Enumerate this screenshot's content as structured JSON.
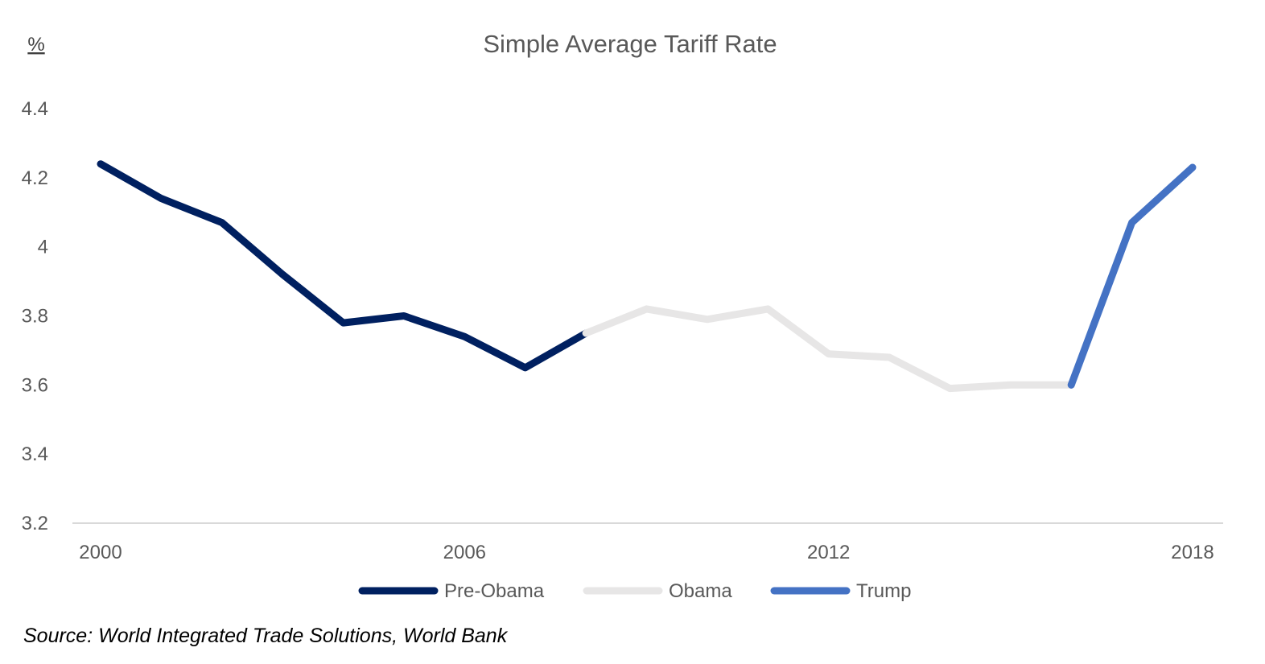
{
  "chart_data": {
    "type": "line",
    "title": "Simple Average Tariff Rate",
    "ylabel": "%",
    "xlabel": "",
    "ylim": [
      3.2,
      4.4
    ],
    "yticks": [
      3.2,
      3.4,
      3.6,
      3.8,
      4,
      4.2,
      4.4
    ],
    "xlim": [
      2000,
      2018
    ],
    "xticks": [
      2000,
      2006,
      2012,
      2018
    ],
    "grid": false,
    "legend_position": "bottom",
    "series": [
      {
        "name": "Pre-Obama",
        "color": "#002060",
        "x": [
          2000,
          2001,
          2002,
          2003,
          2004,
          2005,
          2006,
          2007,
          2008
        ],
        "values": [
          4.24,
          4.14,
          4.07,
          3.92,
          3.78,
          3.8,
          3.74,
          3.65,
          3.75
        ]
      },
      {
        "name": "Obama",
        "color": "#e7e6e6",
        "x": [
          2008,
          2009,
          2010,
          2011,
          2012,
          2013,
          2014,
          2015,
          2016
        ],
        "values": [
          3.75,
          3.82,
          3.79,
          3.82,
          3.69,
          3.68,
          3.59,
          3.6,
          3.6
        ]
      },
      {
        "name": "Trump",
        "color": "#4472c4",
        "x": [
          2016,
          2017,
          2018
        ],
        "values": [
          3.6,
          4.07,
          4.23
        ]
      }
    ]
  },
  "source": "Source: World Integrated Trade Solutions, World Bank"
}
